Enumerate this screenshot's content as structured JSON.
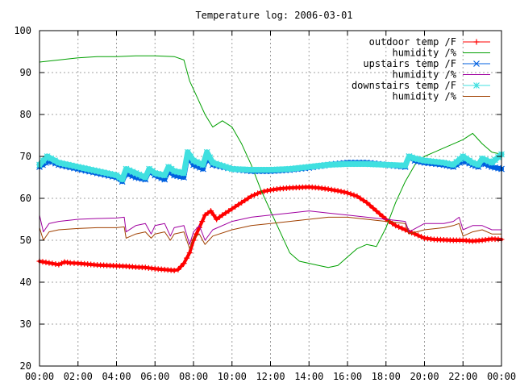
{
  "chart_data": {
    "type": "line",
    "title": "Temperature log: 2006-03-01",
    "xlabel": "",
    "ylabel": "",
    "xlim": [
      0,
      24
    ],
    "ylim": [
      20,
      100
    ],
    "x_ticks": [
      "00:00",
      "02:00",
      "04:00",
      "06:00",
      "08:00",
      "10:00",
      "12:00",
      "14:00",
      "16:00",
      "18:00",
      "20:00",
      "22:00",
      "00:00"
    ],
    "y_ticks": [
      20,
      30,
      40,
      50,
      60,
      70,
      80,
      90,
      100
    ],
    "grid": true,
    "legend_position": "top-right",
    "series": [
      {
        "name": "outdoor temp /F",
        "color": "#ff0000",
        "marker": "plus",
        "x": [
          0,
          0.5,
          1,
          1.3,
          1.6,
          2,
          2.5,
          3,
          3.5,
          4,
          4.5,
          5,
          5.5,
          6,
          6.5,
          7,
          7.2,
          7.5,
          7.8,
          8,
          8.3,
          8.6,
          8.9,
          9.2,
          9.5,
          10,
          10.5,
          11,
          11.5,
          12,
          12.5,
          13,
          13.5,
          14,
          14.5,
          15,
          15.5,
          16,
          16.5,
          17,
          17.5,
          18,
          18.5,
          19,
          19.5,
          20,
          20.5,
          21,
          21.5,
          22,
          22.5,
          23,
          23.5,
          24
        ],
        "y": [
          45,
          44.6,
          44.2,
          44.8,
          44.6,
          44.5,
          44.3,
          44.1,
          44,
          43.9,
          43.8,
          43.6,
          43.5,
          43.2,
          43,
          42.8,
          43,
          44.5,
          47,
          50,
          53,
          56,
          57,
          55,
          56,
          57.5,
          59,
          60.5,
          61.5,
          62,
          62.3,
          62.5,
          62.6,
          62.7,
          62.5,
          62.2,
          61.8,
          61.3,
          60.5,
          59,
          57,
          55,
          53.5,
          52.5,
          51.5,
          50.5,
          50.2,
          50.1,
          50,
          50,
          49.8,
          50,
          50.3,
          50.2
        ]
      },
      {
        "name": "humidity /%",
        "color": "#00a000",
        "marker": "none",
        "x": [
          0,
          1,
          2,
          3,
          4,
          5,
          6,
          7,
          7.5,
          7.8,
          8.2,
          8.6,
          9,
          9.5,
          10,
          10.5,
          11,
          11.5,
          12,
          12.5,
          13,
          13.5,
          14,
          14.5,
          15,
          15.5,
          16,
          16.5,
          17,
          17.5,
          18,
          18.5,
          19,
          19.5,
          20,
          20.5,
          21,
          21.5,
          22,
          22.5,
          23,
          23.5,
          24
        ],
        "y": [
          92.5,
          93,
          93.5,
          93.8,
          93.8,
          94,
          94,
          93.8,
          93,
          88,
          84,
          80,
          77,
          78.5,
          77,
          73,
          68,
          62,
          57,
          52,
          47,
          45,
          44.5,
          44,
          43.5,
          44,
          46,
          48,
          49,
          48.5,
          53,
          59,
          64,
          68,
          70,
          71,
          72,
          73,
          74,
          75.5,
          73,
          71,
          70.5
        ]
      },
      {
        "name": "upstairs temp /F",
        "color": "#0060e0",
        "marker": "cross",
        "x": [
          0,
          0.5,
          1,
          2,
          3,
          4,
          4.3,
          4.5,
          5,
          5.5,
          5.7,
          6,
          6.5,
          6.7,
          7,
          7.5,
          7.7,
          8,
          8.5,
          8.7,
          9,
          10,
          11,
          12,
          13,
          14,
          15,
          16,
          17,
          18,
          19,
          19.2,
          19.5,
          20,
          21,
          21.5,
          22,
          22.5,
          22.8,
          23,
          23.5,
          24
        ],
        "y": [
          67.5,
          69,
          68,
          67,
          66,
          65,
          64,
          66,
          65,
          64.5,
          66.5,
          65.5,
          64.5,
          66.5,
          65.5,
          65,
          70,
          68,
          67,
          70,
          68,
          67,
          66.5,
          66.5,
          66.8,
          67.3,
          68,
          68.5,
          68.5,
          68,
          67.5,
          70,
          69,
          68.5,
          68,
          67.5,
          69,
          68,
          67.5,
          68.5,
          67.5,
          67
        ]
      },
      {
        "name": "humidity /%",
        "color": "#a000a0",
        "marker": "none",
        "x": [
          0,
          0.2,
          0.5,
          1,
          2,
          3,
          4,
          4.4,
          4.5,
          5,
          5.5,
          5.8,
          6,
          6.5,
          6.8,
          7,
          7.5,
          7.8,
          8,
          8.3,
          8.6,
          9,
          10,
          11,
          12,
          13,
          14,
          15,
          16,
          17,
          18,
          19,
          19.2,
          20,
          21,
          21.5,
          21.8,
          22,
          22.5,
          23,
          23.5,
          24
        ],
        "y": [
          56,
          52,
          54,
          54.5,
          55,
          55.2,
          55.3,
          55.5,
          52,
          53.5,
          54,
          51.5,
          53.5,
          54,
          51,
          53,
          53.5,
          49,
          52,
          53.5,
          50,
          52.5,
          54.5,
          55.5,
          56,
          56.5,
          57,
          56.5,
          56,
          55.5,
          55,
          54.5,
          52,
          54,
          54,
          54.5,
          55.5,
          52.5,
          53.5,
          53.5,
          52.5,
          52.5
        ]
      },
      {
        "name": "downstairs temp /F",
        "color": "#40e0e0",
        "marker": "star",
        "x": [
          0,
          0.4,
          1,
          2,
          3,
          4,
          4.3,
          4.5,
          5,
          5.5,
          5.7,
          6,
          6.5,
          6.7,
          7,
          7.5,
          7.7,
          8,
          8.5,
          8.7,
          9,
          10,
          11,
          12,
          13,
          14,
          15,
          16,
          17,
          18,
          19,
          19.2,
          19.5,
          20,
          21,
          21.5,
          22,
          22.5,
          22.8,
          23,
          23.5,
          24
        ],
        "y": [
          68,
          70,
          68.5,
          67.5,
          66.5,
          65.5,
          64.5,
          67,
          66,
          65,
          67,
          66,
          65.5,
          67.5,
          66.5,
          66,
          71,
          69,
          68,
          71,
          68.5,
          67,
          66.8,
          66.8,
          67,
          67.5,
          68,
          68.2,
          68.2,
          68,
          67.8,
          70,
          69.5,
          69,
          68.5,
          68,
          70,
          68.5,
          68,
          69.5,
          68.5,
          70.5
        ]
      },
      {
        "name": "humidity /%",
        "color": "#a04000",
        "marker": "none",
        "x": [
          0,
          0.2,
          0.5,
          1,
          2,
          3,
          4,
          4.4,
          4.5,
          5,
          5.5,
          5.8,
          6,
          6.5,
          6.8,
          7,
          7.5,
          7.8,
          8,
          8.3,
          8.6,
          9,
          10,
          11,
          12,
          13,
          14,
          15,
          16,
          17,
          18,
          19,
          19.2,
          20,
          21,
          21.5,
          21.8,
          22,
          22.5,
          23,
          23.5,
          24
        ],
        "y": [
          53,
          50,
          52,
          52.5,
          52.8,
          53,
          53,
          53.2,
          50.5,
          51.5,
          52,
          50.5,
          51.5,
          52,
          50,
          51.5,
          52,
          48,
          50.5,
          51.5,
          49,
          51,
          52.5,
          53.5,
          54,
          54.5,
          55,
          55.5,
          55.5,
          55,
          54.5,
          54,
          51.5,
          52.5,
          53,
          53.5,
          54,
          51,
          52,
          52.5,
          51.5,
          51.5
        ]
      }
    ]
  }
}
